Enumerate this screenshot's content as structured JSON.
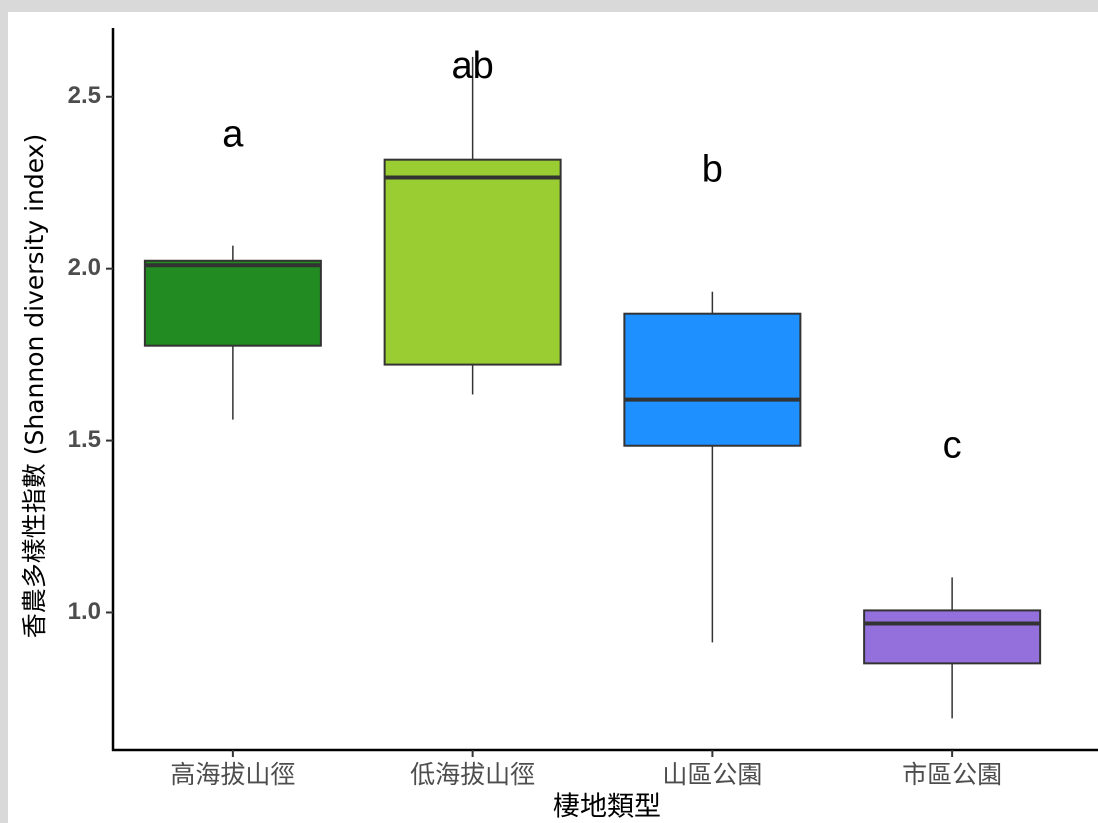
{
  "chart_data": {
    "type": "box",
    "x_label": "棲地類型",
    "y_label": "香農多樣性指數 (Shannon diversity index)",
    "categories": [
      "高海拔山徑",
      "低海拔山徑",
      "山區公園",
      "市區公園"
    ],
    "boxes": [
      {
        "color": "#228b22",
        "whisker_low": 1.561,
        "q1": 1.776,
        "median": 2.01,
        "q3": 2.023,
        "whisker_high": 2.067
      },
      {
        "color": "#9acd32",
        "whisker_low": 1.634,
        "q1": 1.721,
        "median": 2.265,
        "q3": 2.317,
        "whisker_high": 2.616
      },
      {
        "color": "#1e90ff",
        "whisker_low": 0.913,
        "q1": 1.485,
        "median": 1.619,
        "q3": 1.869,
        "whisker_high": 1.933
      },
      {
        "color": "#9370db",
        "whisker_low": 0.692,
        "q1": 0.852,
        "median": 0.968,
        "q3": 1.006,
        "whisker_high": 1.102
      }
    ],
    "annotations": [
      {
        "text": "a",
        "y": 2.384
      },
      {
        "text": "ab",
        "y": 2.584
      },
      {
        "text": "b",
        "y": 2.282
      },
      {
        "text": "c",
        "y": 1.48
      }
    ],
    "ylim": [
      0.6,
      2.7
    ],
    "yticks": [
      {
        "value": 1,
        "label": "1.0"
      },
      1.5,
      {
        "value": 2,
        "label": "2.0"
      },
      2.5
    ]
  }
}
